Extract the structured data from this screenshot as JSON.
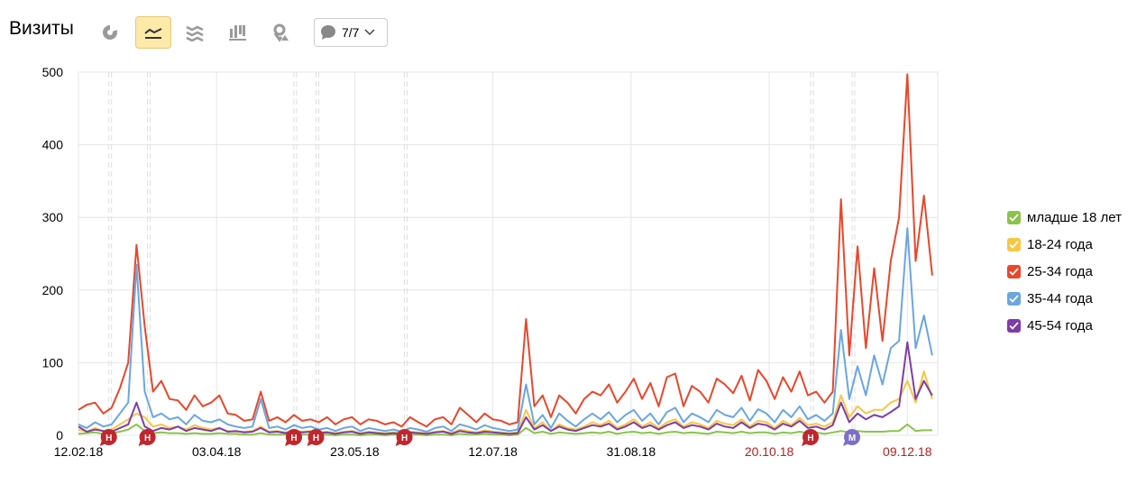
{
  "header": {
    "title": "Визиты",
    "toolbar": [
      {
        "icon": "pie-chart-icon",
        "selected": false
      },
      {
        "icon": "line-chart-icon",
        "selected": true
      },
      {
        "icon": "area-chart-icon",
        "selected": false
      },
      {
        "icon": "bar-chart-icon",
        "selected": false
      },
      {
        "icon": "map-icon",
        "selected": false
      }
    ],
    "annotations_dropdown": {
      "icon": "comment-icon",
      "label": "7/7"
    }
  },
  "colors": {
    "selected_bg": "#fde9a8",
    "grid": "#e6e6e6",
    "weekend_tick": "#b22222",
    "note_red": "#c0272d",
    "note_purple": "#7b6fc9"
  },
  "chart_data": {
    "type": "line",
    "title": "",
    "xlabel": "",
    "ylabel": "",
    "ylim": [
      0,
      500
    ],
    "yticks": [
      "0",
      "100",
      "200",
      "300",
      "400",
      "500"
    ],
    "x_start": "12.02.18",
    "x_step_days": 3,
    "xticks": [
      {
        "label": "12.02.18",
        "day": 0,
        "weekend": false
      },
      {
        "label": "03.04.18",
        "day": 50,
        "weekend": false
      },
      {
        "label": "23.05.18",
        "day": 100,
        "weekend": false
      },
      {
        "label": "12.07.18",
        "day": 150,
        "weekend": false
      },
      {
        "label": "31.08.18",
        "day": 200,
        "weekend": false
      },
      {
        "label": "20.10.18",
        "day": 250,
        "weekend": true
      },
      {
        "label": "09.12.18",
        "day": 300,
        "weekend": true
      }
    ],
    "grid": true,
    "legend_position": "right",
    "series": [
      {
        "name": "младше 18 лет",
        "color": "#8bc34a",
        "checked": true,
        "values": [
          2,
          3,
          4,
          2,
          3,
          5,
          8,
          15,
          6,
          3,
          4,
          3,
          3,
          2,
          3,
          2,
          2,
          3,
          2,
          2,
          1,
          1,
          3,
          1,
          1,
          1,
          2,
          1,
          1,
          1,
          1,
          0,
          1,
          1,
          0,
          1,
          1,
          0,
          1,
          0,
          1,
          1,
          0,
          1,
          1,
          0,
          2,
          1,
          1,
          2,
          1,
          1,
          0,
          1,
          10,
          3,
          5,
          2,
          4,
          3,
          2,
          3,
          4,
          3,
          5,
          2,
          4,
          5,
          3,
          4,
          2,
          4,
          5,
          3,
          4,
          3,
          2,
          5,
          4,
          3,
          5,
          3,
          4,
          4,
          2,
          4,
          3,
          5,
          3,
          4,
          2,
          4,
          6,
          4,
          6,
          5,
          5,
          5,
          6,
          6,
          15,
          6,
          7,
          7
        ]
      },
      {
        "name": "18-24 года",
        "color": "#f6c744",
        "checked": true,
        "values": [
          8,
          5,
          10,
          6,
          8,
          15,
          22,
          30,
          25,
          12,
          15,
          10,
          12,
          8,
          14,
          10,
          8,
          10,
          6,
          5,
          5,
          6,
          12,
          5,
          6,
          4,
          7,
          5,
          6,
          4,
          5,
          3,
          5,
          6,
          3,
          5,
          4,
          3,
          4,
          3,
          5,
          4,
          3,
          5,
          6,
          3,
          8,
          6,
          4,
          7,
          5,
          4,
          3,
          4,
          35,
          10,
          18,
          6,
          15,
          10,
          8,
          12,
          18,
          14,
          20,
          10,
          15,
          22,
          12,
          18,
          10,
          18,
          22,
          12,
          18,
          15,
          10,
          20,
          16,
          14,
          22,
          12,
          20,
          18,
          10,
          20,
          14,
          24,
          14,
          16,
          12,
          18,
          55,
          25,
          40,
          30,
          35,
          35,
          45,
          50,
          75,
          45,
          88,
          50
        ]
      },
      {
        "name": "25-34 года",
        "color": "#e8472b",
        "checked": true,
        "values": [
          35,
          42,
          45,
          30,
          38,
          65,
          100,
          262,
          150,
          60,
          75,
          50,
          48,
          35,
          55,
          40,
          45,
          55,
          30,
          28,
          20,
          22,
          60,
          20,
          25,
          18,
          28,
          20,
          22,
          18,
          25,
          15,
          22,
          25,
          15,
          22,
          20,
          15,
          18,
          12,
          25,
          18,
          12,
          22,
          25,
          15,
          38,
          28,
          18,
          30,
          22,
          20,
          15,
          18,
          160,
          40,
          55,
          25,
          55,
          45,
          30,
          50,
          60,
          55,
          70,
          45,
          60,
          78,
          50,
          72,
          40,
          80,
          85,
          40,
          68,
          60,
          45,
          78,
          70,
          58,
          82,
          48,
          90,
          75,
          50,
          80,
          60,
          88,
          55,
          60,
          45,
          60,
          325,
          110,
          260,
          120,
          230,
          130,
          240,
          300,
          497,
          240,
          330,
          220
        ]
      },
      {
        "name": "35-44 года",
        "color": "#6aa6e0",
        "checked": true,
        "values": [
          15,
          10,
          18,
          12,
          15,
          30,
          45,
          235,
          60,
          25,
          30,
          22,
          25,
          15,
          28,
          20,
          18,
          22,
          15,
          12,
          10,
          12,
          50,
          10,
          12,
          8,
          14,
          10,
          12,
          8,
          10,
          6,
          10,
          12,
          6,
          10,
          8,
          6,
          8,
          5,
          10,
          8,
          5,
          10,
          12,
          6,
          15,
          12,
          8,
          14,
          10,
          8,
          6,
          8,
          70,
          15,
          28,
          10,
          30,
          20,
          12,
          22,
          30,
          22,
          32,
          18,
          28,
          35,
          20,
          30,
          15,
          32,
          38,
          18,
          30,
          25,
          18,
          35,
          28,
          25,
          38,
          20,
          36,
          30,
          18,
          35,
          25,
          40,
          22,
          28,
          20,
          30,
          145,
          50,
          95,
          55,
          110,
          70,
          120,
          130,
          285,
          120,
          165,
          110
        ]
      },
      {
        "name": "45-54 года",
        "color": "#7e3ca8",
        "checked": true,
        "values": [
          12,
          5,
          8,
          6,
          5,
          10,
          15,
          45,
          12,
          6,
          10,
          8,
          12,
          6,
          10,
          8,
          6,
          10,
          5,
          6,
          4,
          5,
          10,
          4,
          5,
          3,
          6,
          4,
          5,
          3,
          4,
          2,
          4,
          5,
          2,
          4,
          3,
          2,
          3,
          2,
          4,
          3,
          2,
          4,
          5,
          2,
          6,
          4,
          3,
          5,
          4,
          3,
          2,
          3,
          25,
          8,
          14,
          6,
          12,
          8,
          6,
          10,
          14,
          12,
          16,
          8,
          12,
          18,
          10,
          14,
          8,
          14,
          18,
          10,
          14,
          12,
          8,
          16,
          12,
          10,
          18,
          10,
          16,
          14,
          8,
          16,
          12,
          20,
          10,
          12,
          8,
          14,
          45,
          18,
          30,
          22,
          28,
          25,
          32,
          40,
          128,
          50,
          75,
          55
        ]
      }
    ],
    "annotations": [
      {
        "day": 11,
        "letter": "Н",
        "type": "red"
      },
      {
        "day": 25,
        "letter": "Н",
        "type": "red"
      },
      {
        "day": 78,
        "letter": "Н",
        "type": "red"
      },
      {
        "day": 86,
        "letter": "Н",
        "type": "red"
      },
      {
        "day": 118,
        "letter": "Н",
        "type": "red"
      },
      {
        "day": 265,
        "letter": "Н",
        "type": "red"
      },
      {
        "day": 280,
        "letter": "М",
        "type": "purple"
      }
    ]
  }
}
